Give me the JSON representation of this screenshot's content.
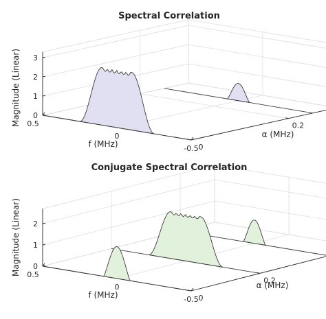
{
  "figure": {
    "titles": [
      "Spectral Correlation",
      "Conjugate Spectral Correlation"
    ]
  },
  "chart_data": [
    {
      "type": "area",
      "title": "Spectral Correlation",
      "xlabel": "f (MHz)",
      "ylabel": "α (MHz)",
      "zlabel": "Magnitude (Linear)",
      "xticks": [
        "0.5",
        "0",
        "-0.5"
      ],
      "yticks": [
        "0",
        "0.2"
      ],
      "zticks": [
        "0",
        "1",
        "2",
        "3"
      ],
      "xlim": [
        0.5,
        -0.5
      ],
      "ylim": [
        0,
        0.3
      ],
      "zlim": [
        0,
        3.3
      ],
      "fill": "#e0e0f2",
      "series": [
        {
          "alpha": 0,
          "bandwidth_f": 0.5,
          "peak": 3.0,
          "style": "flat-top"
        },
        {
          "alpha": 0.25,
          "bandwidth_f": 0.15,
          "peak": 0.9,
          "style": "bump"
        }
      ]
    },
    {
      "type": "area",
      "title": "Conjugate Spectral Correlation",
      "xlabel": "f (MHz)",
      "ylabel": "α (MHz)",
      "zlabel": "Magnitude (Linear)",
      "xticks": [
        "0.5",
        "0",
        "-0.5"
      ],
      "yticks": [
        "0",
        "0.2",
        "0.4"
      ],
      "zticks": [
        "0",
        "1",
        "2"
      ],
      "xlim": [
        0.5,
        -0.5
      ],
      "ylim": [
        0,
        0.5
      ],
      "zlim": [
        0,
        2.7
      ],
      "fill": "#e1f1dc",
      "series": [
        {
          "alpha": 0,
          "bandwidth_f": 0.18,
          "peak": 1.5,
          "style": "bump"
        },
        {
          "alpha": 0.2,
          "bandwidth_f": 0.5,
          "peak": 2.2,
          "style": "flat-top"
        },
        {
          "alpha": 0.4,
          "bandwidth_f": 0.15,
          "peak": 1.1,
          "style": "bump"
        }
      ]
    }
  ]
}
